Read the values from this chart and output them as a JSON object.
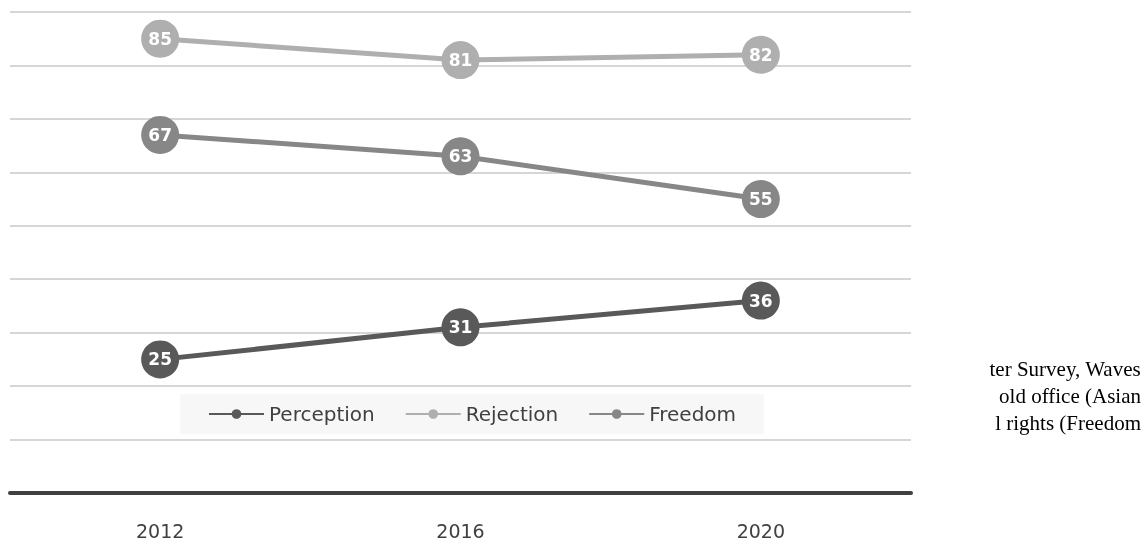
{
  "chart_data": {
    "type": "line",
    "categories": [
      "2012",
      "2016",
      "2020"
    ],
    "series": [
      {
        "name": "Perception",
        "color": "#595959",
        "values": [
          25,
          31,
          36
        ]
      },
      {
        "name": "Rejection",
        "color": "#afafaf",
        "values": [
          85,
          81,
          82
        ]
      },
      {
        "name": "Freedom",
        "color": "#878787",
        "values": [
          67,
          63,
          55
        ]
      }
    ],
    "data_labels": true,
    "marker": "circle",
    "grid": "y",
    "legend": "bottom",
    "tick_labels": "x",
    "annotations": [
      "ter Survey, Waves",
      "old office (Asian",
      "l rights (Freedom"
    ]
  }
}
